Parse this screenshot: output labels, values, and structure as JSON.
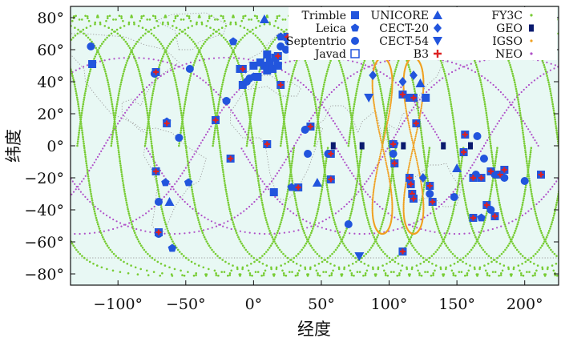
{
  "chart_data": {
    "type": "scatter",
    "title": "",
    "xlabel": "经度",
    "ylabel": "纬度",
    "xlim": [
      -135,
      225
    ],
    "ylim": [
      -87,
      87
    ],
    "grid": false,
    "xticks": [
      -100,
      -50,
      0,
      50,
      100,
      150,
      200
    ],
    "xtick_labels": [
      "−100°",
      "−50°",
      "0°",
      "50°",
      "100°",
      "150°",
      "200°"
    ],
    "yticks": [
      -80,
      -60,
      -40,
      -20,
      0,
      20,
      40,
      60,
      80
    ],
    "ytick_labels": [
      "−80°",
      "−60°",
      "−40°",
      "−20°",
      "0°",
      "20°",
      "40°",
      "60°",
      "80°"
    ],
    "colors": {
      "background": "#e8f8f4",
      "coast": "#9a9a9a",
      "stations": "#2255dd",
      "b3": "#dd2222",
      "fy3c": "#77cc33",
      "geo": "#0a1a6e",
      "igso": "#f0a020",
      "neo": "#b050c8"
    },
    "legend": {
      "placement": "top-right",
      "entries": [
        {
          "label": "Trimble",
          "marker": "square"
        },
        {
          "label": "Leica",
          "marker": "pentagon"
        },
        {
          "label": "Septentrio",
          "marker": "circle"
        },
        {
          "label": "Javad",
          "marker": "open-square"
        },
        {
          "label": "UNICORE",
          "marker": "triangle"
        },
        {
          "label": "CECT-20",
          "marker": "diamond"
        },
        {
          "label": "CECT-54",
          "marker": "triangle-down"
        },
        {
          "label": "B3",
          "marker": "plus"
        },
        {
          "label": "FY3C",
          "marker": "dot-green"
        },
        {
          "label": "GEO",
          "marker": "geo-rect"
        },
        {
          "label": "IGSO",
          "marker": "dot-orange"
        },
        {
          "label": "NEO",
          "marker": "dot-purple"
        }
      ]
    },
    "stations": [
      {
        "m": "square",
        "x": -119,
        "y": 51
      },
      {
        "m": "circle",
        "x": -120,
        "y": 62
      },
      {
        "m": "circle",
        "x": -73,
        "y": 45
      },
      {
        "m": "pentagon",
        "x": -64,
        "y": 15
      },
      {
        "m": "circle",
        "x": -55,
        "y": 5
      },
      {
        "m": "circle",
        "x": -47,
        "y": 48
      },
      {
        "m": "circle",
        "x": -70,
        "y": -35
      },
      {
        "m": "pentagon",
        "x": -65,
        "y": -23
      },
      {
        "m": "triangle",
        "x": -62,
        "y": -35
      },
      {
        "m": "pentagon",
        "x": -48,
        "y": -23
      },
      {
        "m": "circle",
        "x": -70,
        "y": -55
      },
      {
        "m": "pentagon",
        "x": -60,
        "y": -64
      },
      {
        "m": "circle",
        "x": -20,
        "y": 28
      },
      {
        "m": "square",
        "x": -8,
        "y": 38
      },
      {
        "m": "circle",
        "x": -5,
        "y": 40
      },
      {
        "m": "square",
        "x": -10,
        "y": 48
      },
      {
        "m": "square",
        "x": 0,
        "y": 50
      },
      {
        "m": "square",
        "x": 5,
        "y": 52
      },
      {
        "m": "square",
        "x": 8,
        "y": 50
      },
      {
        "m": "square",
        "x": 10,
        "y": 47
      },
      {
        "m": "square",
        "x": 12,
        "y": 52
      },
      {
        "m": "square",
        "x": 14,
        "y": 48
      },
      {
        "m": "square",
        "x": 16,
        "y": 55
      },
      {
        "m": "square",
        "x": 18,
        "y": 50
      },
      {
        "m": "square",
        "x": 3,
        "y": 43
      },
      {
        "m": "circle",
        "x": -3,
        "y": 42
      },
      {
        "m": "circle",
        "x": 20,
        "y": 62
      },
      {
        "m": "circle",
        "x": 24,
        "y": 60
      },
      {
        "m": "circle",
        "x": 26,
        "y": 65
      },
      {
        "m": "pentagon",
        "x": 0,
        "y": 43
      },
      {
        "m": "pentagon",
        "x": -15,
        "y": 65
      },
      {
        "m": "pentagon",
        "x": 20,
        "y": 68
      },
      {
        "m": "triangle",
        "x": 8,
        "y": 79
      },
      {
        "m": "square",
        "x": 10,
        "y": 57
      },
      {
        "m": "circle",
        "x": 38,
        "y": 10
      },
      {
        "m": "circle",
        "x": 40,
        "y": -5
      },
      {
        "m": "pentagon",
        "x": 28,
        "y": -26
      },
      {
        "m": "square",
        "x": 15,
        "y": -29
      },
      {
        "m": "pentagon",
        "x": 57,
        "y": -21
      },
      {
        "m": "circle",
        "x": 55,
        "y": -5
      },
      {
        "m": "triangle",
        "x": 47,
        "y": -23
      },
      {
        "m": "circle",
        "x": 70,
        "y": -49
      },
      {
        "m": "triangle-down",
        "x": 78,
        "y": -69
      },
      {
        "m": "circle",
        "x": 110,
        "y": -66
      },
      {
        "m": "diamond",
        "x": 88,
        "y": 44
      },
      {
        "m": "diamond",
        "x": 110,
        "y": 40
      },
      {
        "m": "triangle",
        "x": 123,
        "y": 39
      },
      {
        "m": "diamond",
        "x": 118,
        "y": 44
      },
      {
        "m": "triangle-down",
        "x": 85,
        "y": 30
      },
      {
        "m": "square",
        "x": 115,
        "y": 30
      },
      {
        "m": "square",
        "x": 127,
        "y": 30
      },
      {
        "m": "pentagon",
        "x": 104,
        "y": 1
      },
      {
        "m": "circle",
        "x": 103,
        "y": -5
      },
      {
        "m": "diamond",
        "x": 125,
        "y": -20
      },
      {
        "m": "circle",
        "x": 130,
        "y": -30
      },
      {
        "m": "circle",
        "x": 165,
        "y": 6
      },
      {
        "m": "circle",
        "x": 170,
        "y": -8
      },
      {
        "m": "circle",
        "x": 164,
        "y": -18
      },
      {
        "m": "circle",
        "x": 178,
        "y": -18
      },
      {
        "m": "circle",
        "x": 185,
        "y": -20
      },
      {
        "m": "circle",
        "x": 175,
        "y": -40
      },
      {
        "m": "pentagon",
        "x": 168,
        "y": -45
      },
      {
        "m": "circle",
        "x": 200,
        "y": -22
      },
      {
        "m": "triangle",
        "x": 150,
        "y": -14
      },
      {
        "m": "circle",
        "x": 148,
        "y": -32
      }
    ],
    "b3_stations": [
      {
        "x": -72,
        "y": 46
      },
      {
        "x": -64,
        "y": 14
      },
      {
        "x": -72,
        "y": -16
      },
      {
        "x": -70,
        "y": -54
      },
      {
        "x": -28,
        "y": 16
      },
      {
        "x": -17,
        "y": -8
      },
      {
        "x": -8,
        "y": 48
      },
      {
        "x": 10,
        "y": 1
      },
      {
        "x": 18,
        "y": 56
      },
      {
        "x": 25,
        "y": 68
      },
      {
        "x": 20,
        "y": 38
      },
      {
        "x": 42,
        "y": 12
      },
      {
        "x": 33,
        "y": -26
      },
      {
        "x": 57,
        "y": -21
      },
      {
        "x": 57,
        "y": -5
      },
      {
        "x": 103,
        "y": 1
      },
      {
        "x": 110,
        "y": 32
      },
      {
        "x": 118,
        "y": 30
      },
      {
        "x": 115,
        "y": -20
      },
      {
        "x": 116,
        "y": -24
      },
      {
        "x": 117,
        "y": -30
      },
      {
        "x": 118,
        "y": -33
      },
      {
        "x": 120,
        "y": 14
      },
      {
        "x": 104,
        "y": -11
      },
      {
        "x": 130,
        "y": -25
      },
      {
        "x": 132,
        "y": -35
      },
      {
        "x": 156,
        "y": 7
      },
      {
        "x": 155,
        "y": -4
      },
      {
        "x": 162,
        "y": -20
      },
      {
        "x": 168,
        "y": -20
      },
      {
        "x": 175,
        "y": -16
      },
      {
        "x": 182,
        "y": -18
      },
      {
        "x": 185,
        "y": -15
      },
      {
        "x": 172,
        "y": -37
      },
      {
        "x": 178,
        "y": -44
      },
      {
        "x": 162,
        "y": -45
      },
      {
        "x": 212,
        "y": -18
      },
      {
        "x": 110,
        "y": -66
      }
    ],
    "geo": [
      {
        "x": 58.75,
        "y": 0
      },
      {
        "x": 80,
        "y": 0
      },
      {
        "x": 110.5,
        "y": 0
      },
      {
        "x": 140,
        "y": 0
      },
      {
        "x": 160,
        "y": 0
      }
    ],
    "igso_centers": [
      95,
      118
    ],
    "igso_inclination": 55,
    "igso_lobe_width": 14,
    "fy3c_inclination": 98.8,
    "fy3c_ascending_nodes": [
      -150,
      -125,
      -100,
      -75,
      -50,
      -25,
      0,
      25,
      50,
      75,
      100,
      125,
      150,
      175,
      200,
      225,
      250,
      275
    ],
    "neo_inclination": 55,
    "neo_ascending_nodes": [
      -180,
      -110,
      -40,
      30,
      100,
      170,
      240
    ]
  }
}
